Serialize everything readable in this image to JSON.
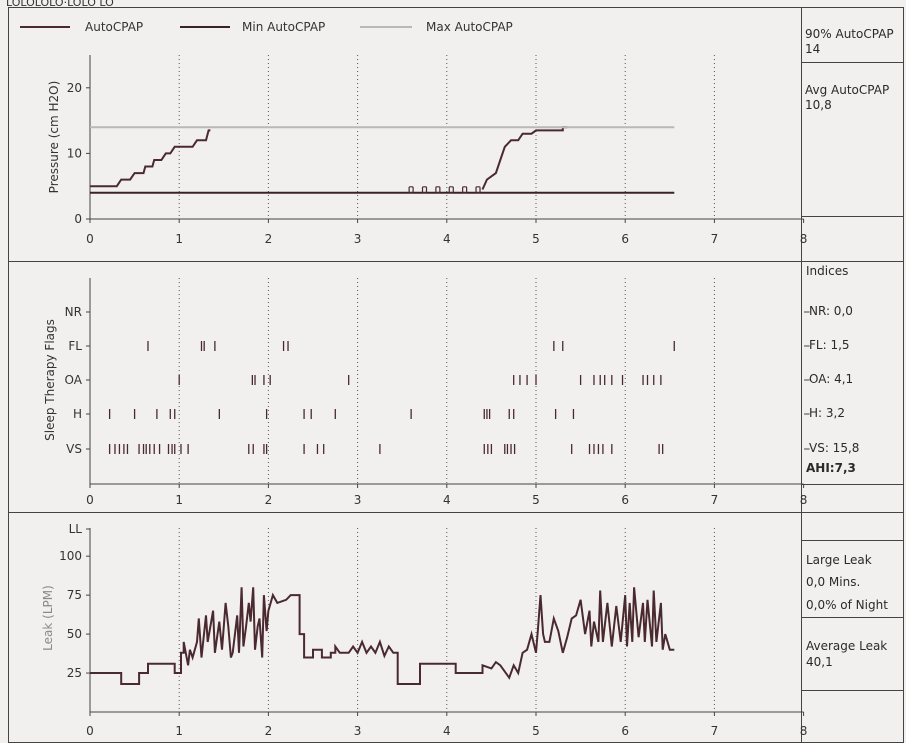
{
  "header_cut": "LOLOLOLO·LOLO LO",
  "colors": {
    "paper": "#f1f0ee",
    "ink": "#4a2a30",
    "min_line": "#3a2226",
    "max_line": "#b8b8b8",
    "grid": "#555555",
    "frame": "#444444",
    "leak_label": "#8a8a8a"
  },
  "pressure_panel": {
    "legend": [
      "AutoCPAP",
      "Min AutoCPAP",
      "Max AutoCPAP"
    ],
    "side": [
      {
        "label": "90% AutoCPAP",
        "value": "14"
      },
      {
        "label": "Avg AutoCPAP",
        "value": "10,8"
      }
    ]
  },
  "flags_panel": {
    "indices_title": "Indices",
    "indices": [
      "NR: 0,0",
      "FL: 1,5",
      "OA: 4,1",
      "H: 3,2",
      "VS: 15,8"
    ],
    "ahi": "AHI:7,3"
  },
  "leak_panel": {
    "large_leak_title": "Large Leak",
    "large_leak_mins": "0,0 Mins.",
    "large_leak_pct": "0,0% of Night",
    "avg_title": "Average Leak",
    "avg_value": "40,1"
  },
  "chart_data": [
    {
      "type": "line",
      "ylabel": "Pressure (cm H2O)",
      "xlim": [
        0,
        8
      ],
      "ylim": [
        0,
        25
      ],
      "xticks": [
        "0",
        "1",
        "2",
        "3",
        "4",
        "5",
        "6",
        "7",
        "8"
      ],
      "yticks": [
        "0",
        "10",
        "20"
      ],
      "grid": "vertical dotted",
      "legend_position": "top",
      "series": [
        {
          "name": "AutoCPAP",
          "color": "#4a2a30",
          "segments": [
            [
              [
                0,
                5
              ],
              [
                0.3,
                5
              ],
              [
                0.35,
                6
              ],
              [
                0.45,
                6
              ],
              [
                0.5,
                7
              ],
              [
                0.6,
                7
              ],
              [
                0.62,
                8
              ],
              [
                0.7,
                8
              ],
              [
                0.72,
                9
              ],
              [
                0.8,
                9
              ],
              [
                0.85,
                10
              ],
              [
                0.9,
                10
              ],
              [
                0.95,
                11
              ],
              [
                1.15,
                11
              ],
              [
                1.2,
                12
              ],
              [
                1.3,
                12
              ],
              [
                1.33,
                13.5
              ],
              [
                1.35,
                13.5
              ]
            ],
            [
              [
                4.4,
                4.5
              ],
              [
                4.45,
                6
              ],
              [
                4.55,
                7
              ],
              [
                4.6,
                9
              ],
              [
                4.65,
                11
              ],
              [
                4.72,
                12
              ],
              [
                4.8,
                12
              ],
              [
                4.85,
                13
              ],
              [
                4.95,
                13
              ],
              [
                5.0,
                13.5
              ],
              [
                5.3,
                13.5
              ],
              [
                5.3,
                14
              ],
              [
                5.35,
                14
              ]
            ]
          ]
        },
        {
          "name": "Min AutoCPAP",
          "color": "#3a2226",
          "points": [
            [
              0,
              4
            ],
            [
              6.55,
              4
            ]
          ]
        },
        {
          "name": "Max AutoCPAP",
          "color": "#b8b8b8",
          "points": [
            [
              0,
              14
            ],
            [
              6.55,
              14
            ]
          ]
        }
      ],
      "markers": [
        [
          3.6,
          4.3
        ],
        [
          3.75,
          4.3
        ],
        [
          3.9,
          4.3
        ],
        [
          4.05,
          4.3
        ],
        [
          4.2,
          4.3
        ],
        [
          4.35,
          4.3
        ]
      ]
    },
    {
      "type": "scatter",
      "ylabel": "Sleep Therapy Flags",
      "xlim": [
        0,
        8
      ],
      "xticks": [
        "0",
        "1",
        "2",
        "3",
        "4",
        "5",
        "6",
        "7",
        "8"
      ],
      "categories": [
        "NR",
        "FL",
        "OA",
        "H",
        "VS"
      ],
      "events": {
        "NR": [],
        "FL": [
          0.65,
          1.25,
          1.28,
          1.4,
          2.17,
          2.22,
          5.2,
          5.3,
          6.55
        ],
        "OA": [
          1,
          1.82,
          1.85,
          1.95,
          2.02,
          2.9,
          4.75,
          4.82,
          4.9,
          5.0,
          5.5,
          5.65,
          5.72,
          5.77,
          5.85,
          5.97,
          6.2,
          6.25,
          6.32,
          6.4
        ],
        "H": [
          0.22,
          0.5,
          0.75,
          0.9,
          0.95,
          1.45,
          1.98,
          2.4,
          2.48,
          2.75,
          3.6,
          4.42,
          4.45,
          4.48,
          4.7,
          4.75,
          5.22,
          5.42
        ],
        "VS": [
          0.22,
          0.28,
          0.33,
          0.38,
          0.42,
          0.55,
          0.6,
          0.63,
          0.67,
          0.72,
          0.78,
          0.88,
          0.92,
          0.95,
          1.02,
          1.1,
          1.78,
          1.83,
          1.95,
          1.98,
          2.4,
          2.55,
          2.62,
          3.25,
          4.42,
          4.46,
          4.5,
          4.65,
          4.68,
          4.72,
          4.76,
          5.4,
          5.6,
          5.65,
          5.7,
          5.75,
          5.85,
          6.38,
          6.42
        ]
      }
    },
    {
      "type": "line",
      "ylabel": "Leak (LPM)",
      "xlim": [
        0,
        8
      ],
      "ylim": [
        0,
        120
      ],
      "xticks": [
        "0",
        "1",
        "2",
        "3",
        "4",
        "5",
        "6",
        "7",
        "8"
      ],
      "yticks": [
        "25",
        "50",
        "75",
        "100",
        "LL"
      ],
      "grid": "vertical dotted",
      "series": [
        {
          "name": "Leak",
          "points": [
            [
              0,
              25
            ],
            [
              0.35,
              25
            ],
            [
              0.35,
              18
            ],
            [
              0.55,
              18
            ],
            [
              0.55,
              25
            ],
            [
              0.65,
              25
            ],
            [
              0.65,
              31
            ],
            [
              0.95,
              31
            ],
            [
              0.95,
              25
            ],
            [
              1.02,
              25
            ],
            [
              1.02,
              38
            ],
            [
              1.05,
              38
            ],
            [
              1.05,
              45
            ],
            [
              1.1,
              30
            ],
            [
              1.12,
              40
            ],
            [
              1.15,
              35
            ],
            [
              1.2,
              45
            ],
            [
              1.22,
              60
            ],
            [
              1.25,
              35
            ],
            [
              1.3,
              62
            ],
            [
              1.32,
              45
            ],
            [
              1.38,
              65
            ],
            [
              1.4,
              38
            ],
            [
              1.45,
              58
            ],
            [
              1.48,
              40
            ],
            [
              1.52,
              70
            ],
            [
              1.55,
              55
            ],
            [
              1.58,
              35
            ],
            [
              1.6,
              38
            ],
            [
              1.65,
              62
            ],
            [
              1.67,
              38
            ],
            [
              1.7,
              80
            ],
            [
              1.72,
              42
            ],
            [
              1.75,
              55
            ],
            [
              1.78,
              70
            ],
            [
              1.8,
              58
            ],
            [
              1.83,
              80
            ],
            [
              1.85,
              40
            ],
            [
              1.88,
              55
            ],
            [
              1.9,
              60
            ],
            [
              1.93,
              35
            ],
            [
              1.95,
              75
            ],
            [
              1.98,
              52
            ],
            [
              2,
              65
            ],
            [
              2.05,
              75
            ],
            [
              2.1,
              70
            ],
            [
              2.2,
              72
            ],
            [
              2.25,
              75
            ],
            [
              2.35,
              75
            ],
            [
              2.35,
              50
            ],
            [
              2.4,
              50
            ],
            [
              2.4,
              35
            ],
            [
              2.5,
              35
            ],
            [
              2.5,
              40
            ],
            [
              2.6,
              40
            ],
            [
              2.6,
              35
            ],
            [
              2.7,
              35
            ],
            [
              2.7,
              38
            ],
            [
              2.75,
              38
            ],
            [
              2.75,
              42
            ],
            [
              2.8,
              38
            ],
            [
              2.9,
              38
            ],
            [
              2.95,
              42
            ],
            [
              3.0,
              38
            ],
            [
              3.05,
              45
            ],
            [
              3.1,
              38
            ],
            [
              3.15,
              42
            ],
            [
              3.2,
              38
            ],
            [
              3.25,
              45
            ],
            [
              3.3,
              36
            ],
            [
              3.35,
              42
            ],
            [
              3.4,
              38
            ],
            [
              3.45,
              38
            ],
            [
              3.45,
              18
            ],
            [
              3.7,
              18
            ],
            [
              3.7,
              31
            ],
            [
              4.1,
              31
            ],
            [
              4.1,
              25
            ],
            [
              4.4,
              25
            ],
            [
              4.4,
              30
            ],
            [
              4.5,
              28
            ],
            [
              4.55,
              32
            ],
            [
              4.6,
              30
            ],
            [
              4.7,
              22
            ],
            [
              4.75,
              30
            ],
            [
              4.8,
              25
            ],
            [
              4.85,
              38
            ],
            [
              4.9,
              40
            ],
            [
              4.95,
              50
            ],
            [
              5.0,
              38
            ],
            [
              5.02,
              52
            ],
            [
              5.05,
              75
            ],
            [
              5.08,
              50
            ],
            [
              5.1,
              45
            ],
            [
              5.15,
              45
            ],
            [
              5.2,
              60
            ],
            [
              5.25,
              52
            ],
            [
              5.3,
              38
            ],
            [
              5.35,
              48
            ],
            [
              5.4,
              60
            ],
            [
              5.45,
              62
            ],
            [
              5.5,
              72
            ],
            [
              5.55,
              50
            ],
            [
              5.6,
              65
            ],
            [
              5.62,
              42
            ],
            [
              5.65,
              58
            ],
            [
              5.7,
              45
            ],
            [
              5.72,
              78
            ],
            [
              5.75,
              45
            ],
            [
              5.8,
              70
            ],
            [
              5.85,
              42
            ],
            [
              5.9,
              68
            ],
            [
              5.95,
              45
            ],
            [
              6.0,
              75
            ],
            [
              6.02,
              42
            ],
            [
              6.05,
              70
            ],
            [
              6.08,
              45
            ],
            [
              6.1,
              80
            ],
            [
              6.15,
              48
            ],
            [
              6.2,
              70
            ],
            [
              6.22,
              45
            ],
            [
              6.25,
              72
            ],
            [
              6.3,
              42
            ],
            [
              6.32,
              78
            ],
            [
              6.35,
              45
            ],
            [
              6.4,
              70
            ],
            [
              6.42,
              40
            ],
            [
              6.45,
              50
            ],
            [
              6.5,
              40
            ],
            [
              6.55,
              40
            ]
          ]
        }
      ]
    }
  ]
}
